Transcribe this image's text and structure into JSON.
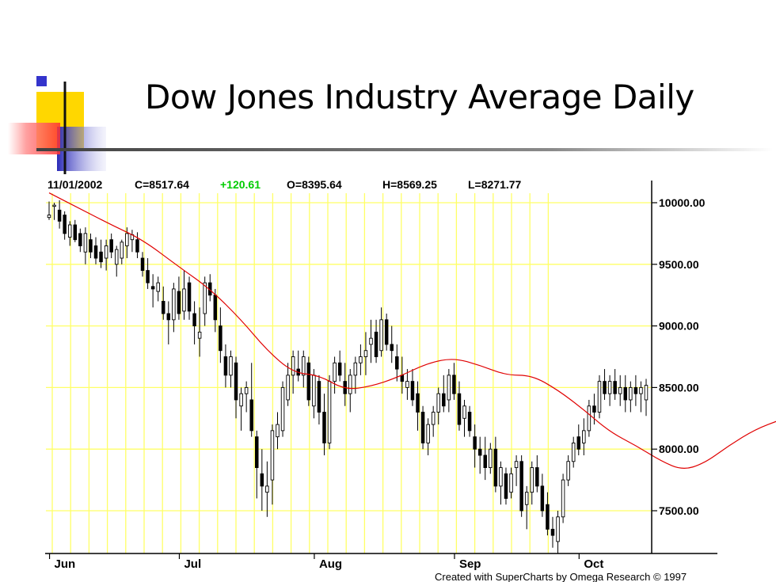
{
  "slide": {
    "title": "Dow Jones Industry Average Daily"
  },
  "colors": {
    "accent_yellow": "#FFD700",
    "accent_blue": "#3434CC",
    "accent_red": "#FF5050",
    "grid": "#FFFF66",
    "ma": "#E00000",
    "change_up": "#00CC00"
  },
  "chart_data": {
    "type": "candlestick",
    "header": {
      "date": "11/01/2002",
      "close": "C=8517.64",
      "change": "+120.61",
      "open": "O=8395.64",
      "high": "H=8569.25",
      "low": "L=8271.77"
    },
    "y_ticks": [
      "10000.00",
      "9500.00",
      "9000.00",
      "8500.00",
      "8000.00",
      "7500.00"
    ],
    "y_tick_values": [
      10000,
      9500,
      9000,
      8500,
      8000,
      7500
    ],
    "ylim": [
      7200,
      10100
    ],
    "x_month_labels": [
      "Jun",
      "Jul",
      "Aug",
      "Sep",
      "Oct"
    ],
    "x_month_positions": [
      1,
      26,
      52,
      79,
      103
    ],
    "credit": "Created with SuperCharts by Omega Research © 1997",
    "ma_series": [
      [
        0,
        10080
      ],
      [
        6,
        9950
      ],
      [
        12,
        9820
      ],
      [
        18,
        9700
      ],
      [
        25,
        9480
      ],
      [
        31,
        9300
      ],
      [
        37,
        9050
      ],
      [
        42,
        8800
      ],
      [
        47,
        8620
      ],
      [
        52,
        8600
      ],
      [
        57,
        8480
      ],
      [
        62,
        8510
      ],
      [
        67,
        8580
      ],
      [
        73,
        8700
      ],
      [
        78,
        8740
      ],
      [
        83,
        8680
      ],
      [
        88,
        8600
      ],
      [
        93,
        8600
      ],
      [
        98,
        8480
      ],
      [
        103,
        8320
      ],
      [
        108,
        8140
      ],
      [
        113,
        8030
      ],
      [
        118,
        7900
      ],
      [
        122,
        7830
      ],
      [
        126,
        7880
      ],
      [
        131,
        8030
      ],
      [
        136,
        8160
      ],
      [
        141,
        8240
      ]
    ],
    "candles": [
      [
        9880,
        10010,
        9860,
        9900
      ],
      [
        9970,
        10000,
        9860,
        9980
      ],
      [
        9940,
        10020,
        9790,
        9850
      ],
      [
        9900,
        9930,
        9700,
        9750
      ],
      [
        9720,
        9850,
        9650,
        9820
      ],
      [
        9820,
        9860,
        9680,
        9700
      ],
      [
        9750,
        9790,
        9600,
        9650
      ],
      [
        9600,
        9800,
        9500,
        9750
      ],
      [
        9700,
        9750,
        9550,
        9600
      ],
      [
        9650,
        9720,
        9500,
        9550
      ],
      [
        9600,
        9700,
        9470,
        9520
      ],
      [
        9550,
        9700,
        9450,
        9650
      ],
      [
        9700,
        9750,
        9550,
        9600
      ],
      [
        9500,
        9650,
        9400,
        9620
      ],
      [
        9550,
        9700,
        9500,
        9680
      ],
      [
        9650,
        9800,
        9550,
        9750
      ],
      [
        9700,
        9780,
        9600,
        9740
      ],
      [
        9700,
        9760,
        9550,
        9600
      ],
      [
        9550,
        9600,
        9400,
        9450
      ],
      [
        9450,
        9550,
        9300,
        9350
      ],
      [
        9320,
        9420,
        9150,
        9300
      ],
      [
        9280,
        9400,
        9200,
        9350
      ],
      [
        9200,
        9320,
        9050,
        9100
      ],
      [
        9100,
        9200,
        8850,
        9050
      ],
      [
        9050,
        9350,
        8950,
        9300
      ],
      [
        9280,
        9400,
        9050,
        9100
      ],
      [
        9120,
        9450,
        9050,
        9300
      ],
      [
        9350,
        9400,
        9050,
        9120
      ],
      [
        9100,
        9200,
        8850,
        9000
      ],
      [
        8900,
        9150,
        8750,
        8950
      ],
      [
        9100,
        9400,
        9000,
        9350
      ],
      [
        9350,
        9420,
        9200,
        9250
      ],
      [
        9250,
        9300,
        8950,
        9050
      ],
      [
        9000,
        9150,
        8700,
        8800
      ],
      [
        8750,
        8850,
        8500,
        8600
      ],
      [
        8600,
        8800,
        8500,
        8750
      ],
      [
        8700,
        8750,
        8250,
        8400
      ],
      [
        8350,
        8500,
        8150,
        8450
      ],
      [
        8450,
        8550,
        8300,
        8500
      ],
      [
        8400,
        8700,
        8100,
        8150
      ],
      [
        8100,
        8150,
        7600,
        7850
      ],
      [
        7800,
        8000,
        7500,
        7700
      ],
      [
        7650,
        7900,
        7450,
        7700
      ],
      [
        7750,
        8200,
        7550,
        8150
      ],
      [
        8100,
        8300,
        8000,
        8200
      ],
      [
        8150,
        8550,
        8100,
        8500
      ],
      [
        8400,
        8700,
        8350,
        8600
      ],
      [
        8600,
        8800,
        8450,
        8750
      ],
      [
        8650,
        8800,
        8550,
        8600
      ],
      [
        8600,
        8800,
        8500,
        8750
      ],
      [
        8700,
        8750,
        8350,
        8400
      ],
      [
        8350,
        8650,
        8250,
        8600
      ],
      [
        8550,
        8600,
        8200,
        8300
      ],
      [
        8300,
        8450,
        7950,
        8050
      ],
      [
        8050,
        8600,
        8000,
        8550
      ],
      [
        8550,
        8750,
        8450,
        8700
      ],
      [
        8700,
        8800,
        8550,
        8600
      ],
      [
        8550,
        8700,
        8350,
        8450
      ],
      [
        8450,
        8650,
        8300,
        8600
      ],
      [
        8600,
        8750,
        8450,
        8700
      ],
      [
        8700,
        8850,
        8600,
        8750
      ],
      [
        8750,
        8950,
        8600,
        8800
      ],
      [
        8850,
        9050,
        8700,
        8900
      ],
      [
        8950,
        9050,
        8700,
        8750
      ],
      [
        8800,
        9150,
        8750,
        9050
      ],
      [
        9050,
        9100,
        8800,
        8850
      ],
      [
        8850,
        9000,
        8700,
        8800
      ],
      [
        8750,
        8850,
        8550,
        8650
      ],
      [
        8600,
        8750,
        8450,
        8550
      ],
      [
        8500,
        8650,
        8400,
        8550
      ],
      [
        8550,
        8650,
        8350,
        8400
      ],
      [
        8450,
        8550,
        8150,
        8300
      ],
      [
        8300,
        8350,
        8000,
        8050
      ],
      [
        8050,
        8250,
        7950,
        8200
      ],
      [
        8200,
        8350,
        8100,
        8300
      ],
      [
        8300,
        8500,
        8200,
        8450
      ],
      [
        8450,
        8600,
        8300,
        8350
      ],
      [
        8400,
        8650,
        8300,
        8600
      ],
      [
        8600,
        8700,
        8400,
        8450
      ],
      [
        8450,
        8550,
        8150,
        8200
      ],
      [
        8250,
        8400,
        8100,
        8350
      ],
      [
        8300,
        8350,
        8100,
        8150
      ],
      [
        8100,
        8200,
        7850,
        8000
      ],
      [
        8000,
        8100,
        7800,
        7950
      ],
      [
        7950,
        8100,
        7750,
        7850
      ],
      [
        7850,
        8050,
        7800,
        8000
      ],
      [
        8000,
        8100,
        7650,
        7700
      ],
      [
        7700,
        7900,
        7550,
        7850
      ],
      [
        7800,
        7850,
        7550,
        7600
      ],
      [
        7650,
        7850,
        7600,
        7800
      ],
      [
        7850,
        7950,
        7700,
        7900
      ],
      [
        7900,
        7950,
        7450,
        7500
      ],
      [
        7550,
        7700,
        7350,
        7650
      ],
      [
        7650,
        7900,
        7550,
        7850
      ],
      [
        7850,
        7950,
        7650,
        7700
      ],
      [
        7700,
        7800,
        7450,
        7500
      ],
      [
        7550,
        7650,
        7300,
        7350
      ],
      [
        7350,
        7450,
        7200,
        7300
      ],
      [
        7250,
        7500,
        7150,
        7450
      ],
      [
        7450,
        7800,
        7400,
        7750
      ],
      [
        7750,
        7950,
        7700,
        7900
      ],
      [
        7900,
        8100,
        7850,
        8050
      ],
      [
        8100,
        8200,
        7950,
        8000
      ],
      [
        8050,
        8250,
        7950,
        8150
      ],
      [
        8150,
        8400,
        8100,
        8350
      ],
      [
        8350,
        8450,
        8200,
        8300
      ],
      [
        8300,
        8600,
        8250,
        8550
      ],
      [
        8550,
        8650,
        8400,
        8450
      ],
      [
        8450,
        8600,
        8350,
        8550
      ],
      [
        8550,
        8650,
        8400,
        8450
      ],
      [
        8450,
        8600,
        8350,
        8500
      ],
      [
        8500,
        8600,
        8300,
        8400
      ],
      [
        8400,
        8550,
        8300,
        8500
      ],
      [
        8500,
        8600,
        8350,
        8450
      ],
      [
        8450,
        8550,
        8300,
        8500
      ],
      [
        8400,
        8570,
        8270,
        8518
      ]
    ]
  }
}
